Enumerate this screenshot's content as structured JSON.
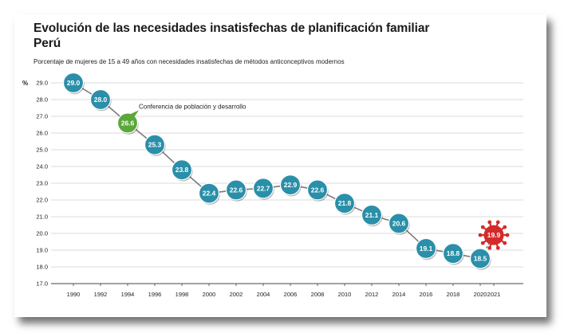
{
  "chart_data": {
    "type": "line",
    "title_line1": "Evolución de las necesidades insatisfechas de planificación familiar",
    "title_line2": "Perú",
    "subtitle": "Porcentaje de mujeres de 15 a 49 años con necesidades insatisfechas de métodos anticonceptivos modernos",
    "ylabel": "%",
    "ylim": [
      17.0,
      29.0
    ],
    "yticks": [
      "17.0",
      "18.0",
      "19.0",
      "20.0",
      "21.0",
      "22.0",
      "23.0",
      "24.0",
      "25.0",
      "26.0",
      "27.0",
      "28.0",
      "29.0"
    ],
    "xticks": [
      "1990",
      "1992",
      "1994",
      "1996",
      "1998",
      "2000",
      "2002",
      "2004",
      "2006",
      "2008",
      "2010",
      "2012",
      "2014",
      "2016",
      "2018",
      "2020",
      "2021"
    ],
    "x": [
      1990,
      1992,
      1994,
      1996,
      1998,
      2000,
      2002,
      2004,
      2006,
      2008,
      2010,
      2012,
      2014,
      2016,
      2018,
      2020,
      2021
    ],
    "values": [
      29.0,
      28.0,
      26.6,
      25.3,
      23.8,
      22.4,
      22.6,
      22.7,
      22.9,
      22.6,
      21.8,
      21.1,
      20.6,
      19.1,
      18.8,
      18.5,
      19.9
    ],
    "labels": [
      "29.0",
      "28.0",
      "26.6",
      "25.3",
      "23.8",
      "22.4",
      "22.6",
      "22.7",
      "22.9",
      "22.6",
      "21.8",
      "21.1",
      "20.6",
      "19.1",
      "18.8",
      "18.5",
      "19.9"
    ],
    "annotation": {
      "text": "Conferencia de población y desarrollo",
      "x": 1994
    },
    "grid": true,
    "colors": {
      "marker": "#2a8fa8",
      "highlight": "#5aa83a",
      "virus": "#d42a2a",
      "line": "#7a7a7a"
    }
  }
}
